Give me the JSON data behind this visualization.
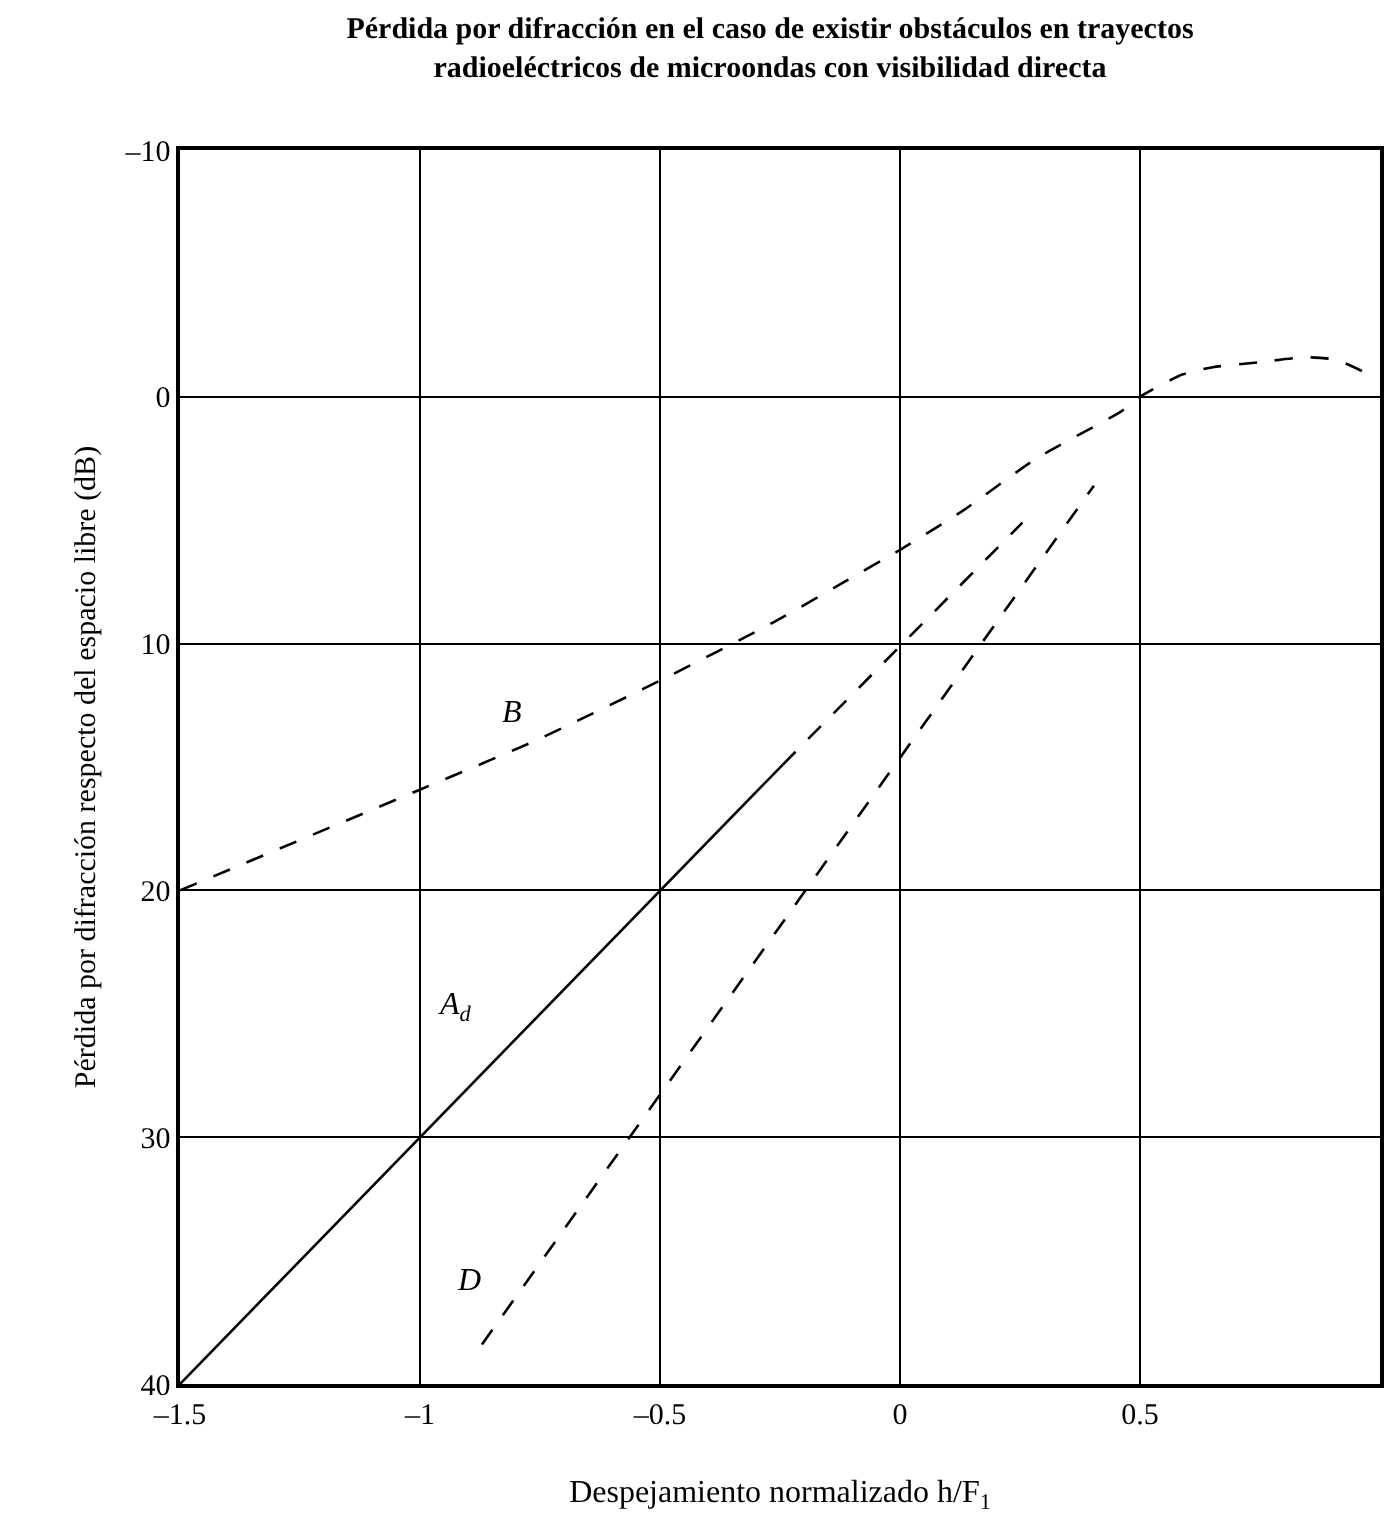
{
  "chart_data": {
    "type": "line",
    "title": "Pérdida por difracción en el caso de existir obstáculos en trayectos radioeléctricos de microondas con visibilidad directa",
    "xlabel": "Despejamiento normalizado h/F$_{1}$",
    "ylabel": "Pérdida por difracción respecto del espacio libre (dB)",
    "xlim": [
      -1.5,
      1.0
    ],
    "xticks": [
      {
        "value": -1.5,
        "label": "–1.5"
      },
      {
        "value": -1,
        "label": "–1"
      },
      {
        "value": -0.5,
        "label": "–0.5"
      },
      0,
      0.5
    ],
    "ylim": [
      40,
      -10
    ],
    "yticks": [
      {
        "value": -10,
        "label": "–10"
      },
      0,
      10,
      20,
      30,
      40
    ],
    "grid": true,
    "legend": false,
    "marker": "none",
    "series": [
      {
        "name": "B",
        "color": "#000000",
        "line_style": "dashed",
        "x": [
          -1.5,
          -0.998,
          -0.756,
          -0.5,
          -0.26,
          -0.116,
          0,
          0.132,
          0.284,
          0.46,
          0.5,
          0.588,
          0.652,
          0.748,
          0.844,
          0.908,
          0.967
        ],
        "values": [
          20,
          15.9,
          13.9,
          11.5,
          9.1,
          7.5,
          6.2,
          4.6,
          2.5,
          0.6,
          0,
          -0.9,
          -1.2,
          -1.4,
          -1.6,
          -1.5,
          -1.0
        ]
      },
      {
        "name": "A$_{d}$",
        "color": "#000000",
        "line_style": "solid",
        "x": [
          -1.5,
          -0.244
        ],
        "values": [
          40,
          14.9
        ]
      },
      {
        "color": "#000000",
        "line_style": "dashed",
        "x": [
          -0.244,
          0.255
        ],
        "values": [
          14.9,
          5.1
        ]
      },
      {
        "name": "D",
        "color": "#000000",
        "line_style": "dashed",
        "x": [
          -0.871,
          0.404
        ],
        "values": [
          38.4,
          3.6
        ]
      }
    ]
  }
}
